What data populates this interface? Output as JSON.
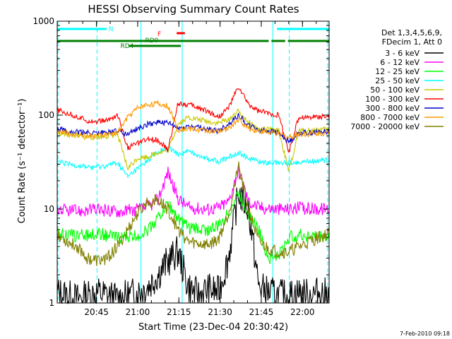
{
  "chart_data": {
    "type": "line",
    "title": "HESSI Observing Summary Count Rates",
    "xlabel": "Start Time (23-Dec-04 20:30:42)",
    "ylabel": "Count Rate (s⁻¹ detector⁻¹)",
    "yscale": "log",
    "ylim": [
      1,
      1000
    ],
    "xlim_minutes": [
      0,
      99
    ],
    "x_ticks": [
      "20:45",
      "21:00",
      "21:15",
      "21:30",
      "21:45",
      "22:00"
    ],
    "y_ticks": [
      "1",
      "10",
      "100",
      "1000"
    ],
    "legend_placement": "right",
    "legend_header": [
      "Det 1,3,4,5,6,9,",
      "FDecim 1, Att 0"
    ],
    "footer_date": "7-Feb-2010 09:18",
    "flags": {
      "labels": [
        "N",
        "F",
        "RD0",
        "RD4"
      ],
      "colors": {
        "N": "#00ffff",
        "F": "#ff0000",
        "RD": "#008000"
      },
      "N_segments": [
        [
          0,
          18
        ],
        [
          80,
          99
        ]
      ],
      "F_segments": [
        [
          43.5,
          46.5
        ]
      ],
      "RD0_segments": [
        [
          0,
          77
        ],
        [
          78,
          83
        ],
        [
          84,
          99
        ]
      ],
      "RD4_segments": [
        [
          26,
          45
        ]
      ]
    },
    "attenuator_lines_minutes": [
      14.5,
      30.5,
      45.5,
      78.5,
      84.5
    ],
    "series": [
      {
        "name": "3 - 6 keV",
        "color": "#000000",
        "values": [
          1.3,
          1.2,
          1.1,
          1.2,
          1.3,
          1.2,
          1.1,
          1.2,
          1.3,
          1.5,
          2.0,
          2.8,
          3.5,
          1.5,
          1.2,
          1.4,
          1.3,
          3.0,
          15.0,
          10.0,
          1.5,
          1.3,
          1.2,
          1.2,
          1.3,
          1.2,
          1.3,
          1.2
        ]
      },
      {
        "name": "6 - 12 keV",
        "color": "#ff00ff",
        "values": [
          10,
          9.6,
          9.5,
          9.7,
          9.8,
          9.7,
          9.5,
          9.6,
          9.8,
          10.5,
          12.5,
          25,
          13,
          10.5,
          10.2,
          10.0,
          10.4,
          12,
          26,
          12,
          10.5,
          10.2,
          10.0,
          10.0,
          10.3,
          10.1,
          10.0,
          10.1
        ]
      },
      {
        "name": "12 - 25 keV",
        "color": "#00ff00",
        "values": [
          5.5,
          5.3,
          5.2,
          5.3,
          5.5,
          5.2,
          5.0,
          5.0,
          5.2,
          6.0,
          8.0,
          11.5,
          8.0,
          6.3,
          6.2,
          6.0,
          6.6,
          9.0,
          15.0,
          9.0,
          6.0,
          3.0,
          3.2,
          5.0,
          5.3,
          5.2,
          5.1,
          5.1
        ]
      },
      {
        "name": "25 - 50 keV",
        "color": "#00ffff",
        "values": [
          32,
          30,
          29,
          28,
          28,
          29,
          31,
          22,
          27,
          33,
          40,
          45,
          38,
          41,
          38,
          34,
          32,
          36,
          40,
          35,
          32,
          31,
          31,
          31,
          32,
          32,
          33,
          33
        ]
      },
      {
        "name": "50 - 100 keV",
        "color": "#c8c800",
        "values": [
          65,
          62,
          60,
          58,
          58,
          60,
          62,
          27,
          35,
          36,
          40,
          42,
          80,
          95,
          90,
          85,
          82,
          90,
          110,
          85,
          70,
          70,
          68,
          25,
          68,
          68,
          70,
          70
        ]
      },
      {
        "name": "100 - 300 keV",
        "color": "#ff0000",
        "values": [
          112,
          105,
          95,
          88,
          85,
          88,
          100,
          45,
          50,
          55,
          55,
          42,
          135,
          130,
          120,
          110,
          95,
          120,
          200,
          130,
          110,
          105,
          100,
          40,
          95,
          95,
          97,
          98
        ]
      },
      {
        "name": "300 - 800 keV",
        "color": "#0000cc",
        "values": [
          72,
          68,
          66,
          65,
          64,
          66,
          70,
          62,
          72,
          80,
          85,
          82,
          72,
          76,
          74,
          70,
          68,
          80,
          100,
          78,
          70,
          68,
          65,
          52,
          65,
          65,
          66,
          67
        ]
      },
      {
        "name": "800 - 7000 keV",
        "color": "#ff9900",
        "values": [
          68,
          64,
          62,
          60,
          60,
          62,
          65,
          95,
          120,
          130,
          132,
          125,
          70,
          72,
          70,
          68,
          66,
          72,
          90,
          72,
          68,
          65,
          63,
          58,
          63,
          63,
          64,
          65
        ]
      },
      {
        "name": "7000 - 20000 keV",
        "color": "#808000",
        "values": [
          5.5,
          4.5,
          4.0,
          3.0,
          2.8,
          3.0,
          4.0,
          6.0,
          9.0,
          12.0,
          12.5,
          10.0,
          6.0,
          4.5,
          4.3,
          4.2,
          4.8,
          9.0,
          28.0,
          10.0,
          4.5,
          3.8,
          3.5,
          3.5,
          4.0,
          4.5,
          5.0,
          5.5
        ]
      }
    ]
  }
}
